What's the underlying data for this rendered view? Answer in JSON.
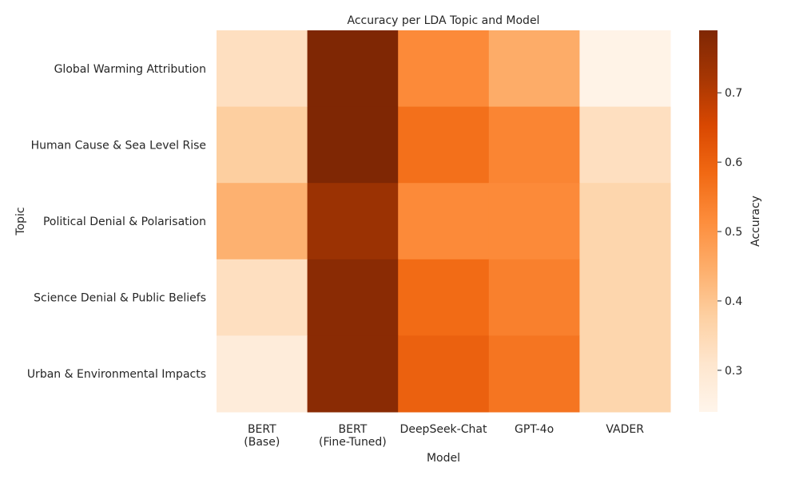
{
  "chart_data": {
    "type": "heatmap",
    "title": "Accuracy per LDA Topic and Model",
    "xlabel": "Model",
    "ylabel": "Topic",
    "colorbar_label": "Accuracy",
    "colormap": "Oranges",
    "colorbar_range": [
      0.24,
      0.79
    ],
    "colorbar_ticks": [
      "0.3",
      "0.4",
      "0.5",
      "0.6",
      "0.7"
    ],
    "x_categories": [
      [
        "BERT",
        "(Base)"
      ],
      [
        "BERT",
        "(Fine-Tuned)"
      ],
      [
        "DeepSeek-Chat"
      ],
      [
        "GPT-4o"
      ],
      [
        "VADER"
      ]
    ],
    "y_categories": [
      "Global Warming Attribution",
      "Human Cause & Sea Level Rise",
      "Political Denial & Polarisation",
      "Science Denial & Public Beliefs",
      "Urban & Environmental Impacts"
    ],
    "values": [
      [
        0.33,
        0.79,
        0.52,
        0.45,
        0.25
      ],
      [
        0.38,
        0.79,
        0.57,
        0.53,
        0.33
      ],
      [
        0.44,
        0.74,
        0.52,
        0.52,
        0.36
      ],
      [
        0.33,
        0.77,
        0.58,
        0.54,
        0.36
      ],
      [
        0.28,
        0.77,
        0.6,
        0.56,
        0.36
      ]
    ],
    "grid": false,
    "legend": "colorbar-right"
  }
}
